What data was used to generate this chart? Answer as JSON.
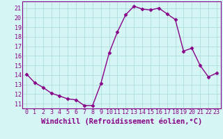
{
  "x": [
    0,
    1,
    2,
    3,
    4,
    5,
    6,
    7,
    8,
    9,
    10,
    11,
    12,
    13,
    14,
    15,
    16,
    17,
    18,
    19,
    20,
    21,
    22,
    23
  ],
  "y": [
    14.1,
    13.2,
    12.7,
    12.1,
    11.8,
    11.5,
    11.4,
    10.8,
    10.8,
    13.1,
    16.3,
    18.5,
    20.3,
    21.2,
    20.9,
    20.8,
    21.0,
    20.4,
    19.8,
    16.5,
    16.8,
    15.0,
    13.8,
    14.2
  ],
  "line_color": "#880088",
  "marker": "D",
  "marker_size": 2.5,
  "bg_color": "#d6f5f5",
  "grid_color": "#b0dede",
  "xlabel": "Windchill (Refroidissement éolien,°C)",
  "xlabel_fontsize": 7.5,
  "yticks": [
    11,
    12,
    13,
    14,
    15,
    16,
    17,
    18,
    19,
    20,
    21
  ],
  "xticks": [
    0,
    1,
    2,
    3,
    4,
    5,
    6,
    7,
    8,
    9,
    10,
    11,
    12,
    13,
    14,
    15,
    16,
    17,
    18,
    19,
    20,
    21,
    22,
    23
  ],
  "ylim": [
    10.5,
    21.7
  ],
  "xlim": [
    -0.5,
    23.5
  ],
  "spine_color": "#880088",
  "tick_color": "#880088",
  "tick_fontsize": 6.0,
  "xlabel_color": "#880088",
  "linewidth": 1.0
}
